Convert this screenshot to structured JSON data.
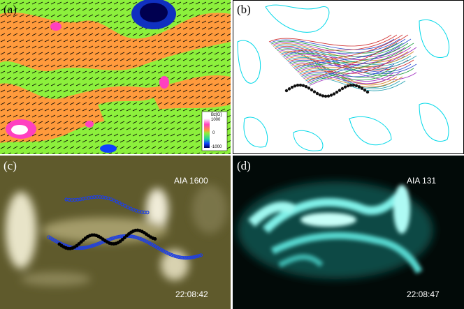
{
  "panels": [
    {
      "label": "(a)",
      "colorbar": {
        "title": "Bz[G]",
        "ticks": [
          "1000",
          "0",
          "-1000"
        ]
      }
    },
    {
      "label": "(b)"
    },
    {
      "label": "(c)",
      "instrument": "AIA 1600",
      "time": "22:08:42"
    },
    {
      "label": "(d)",
      "instrument": "AIA 131",
      "time": "22:08:47"
    }
  ]
}
